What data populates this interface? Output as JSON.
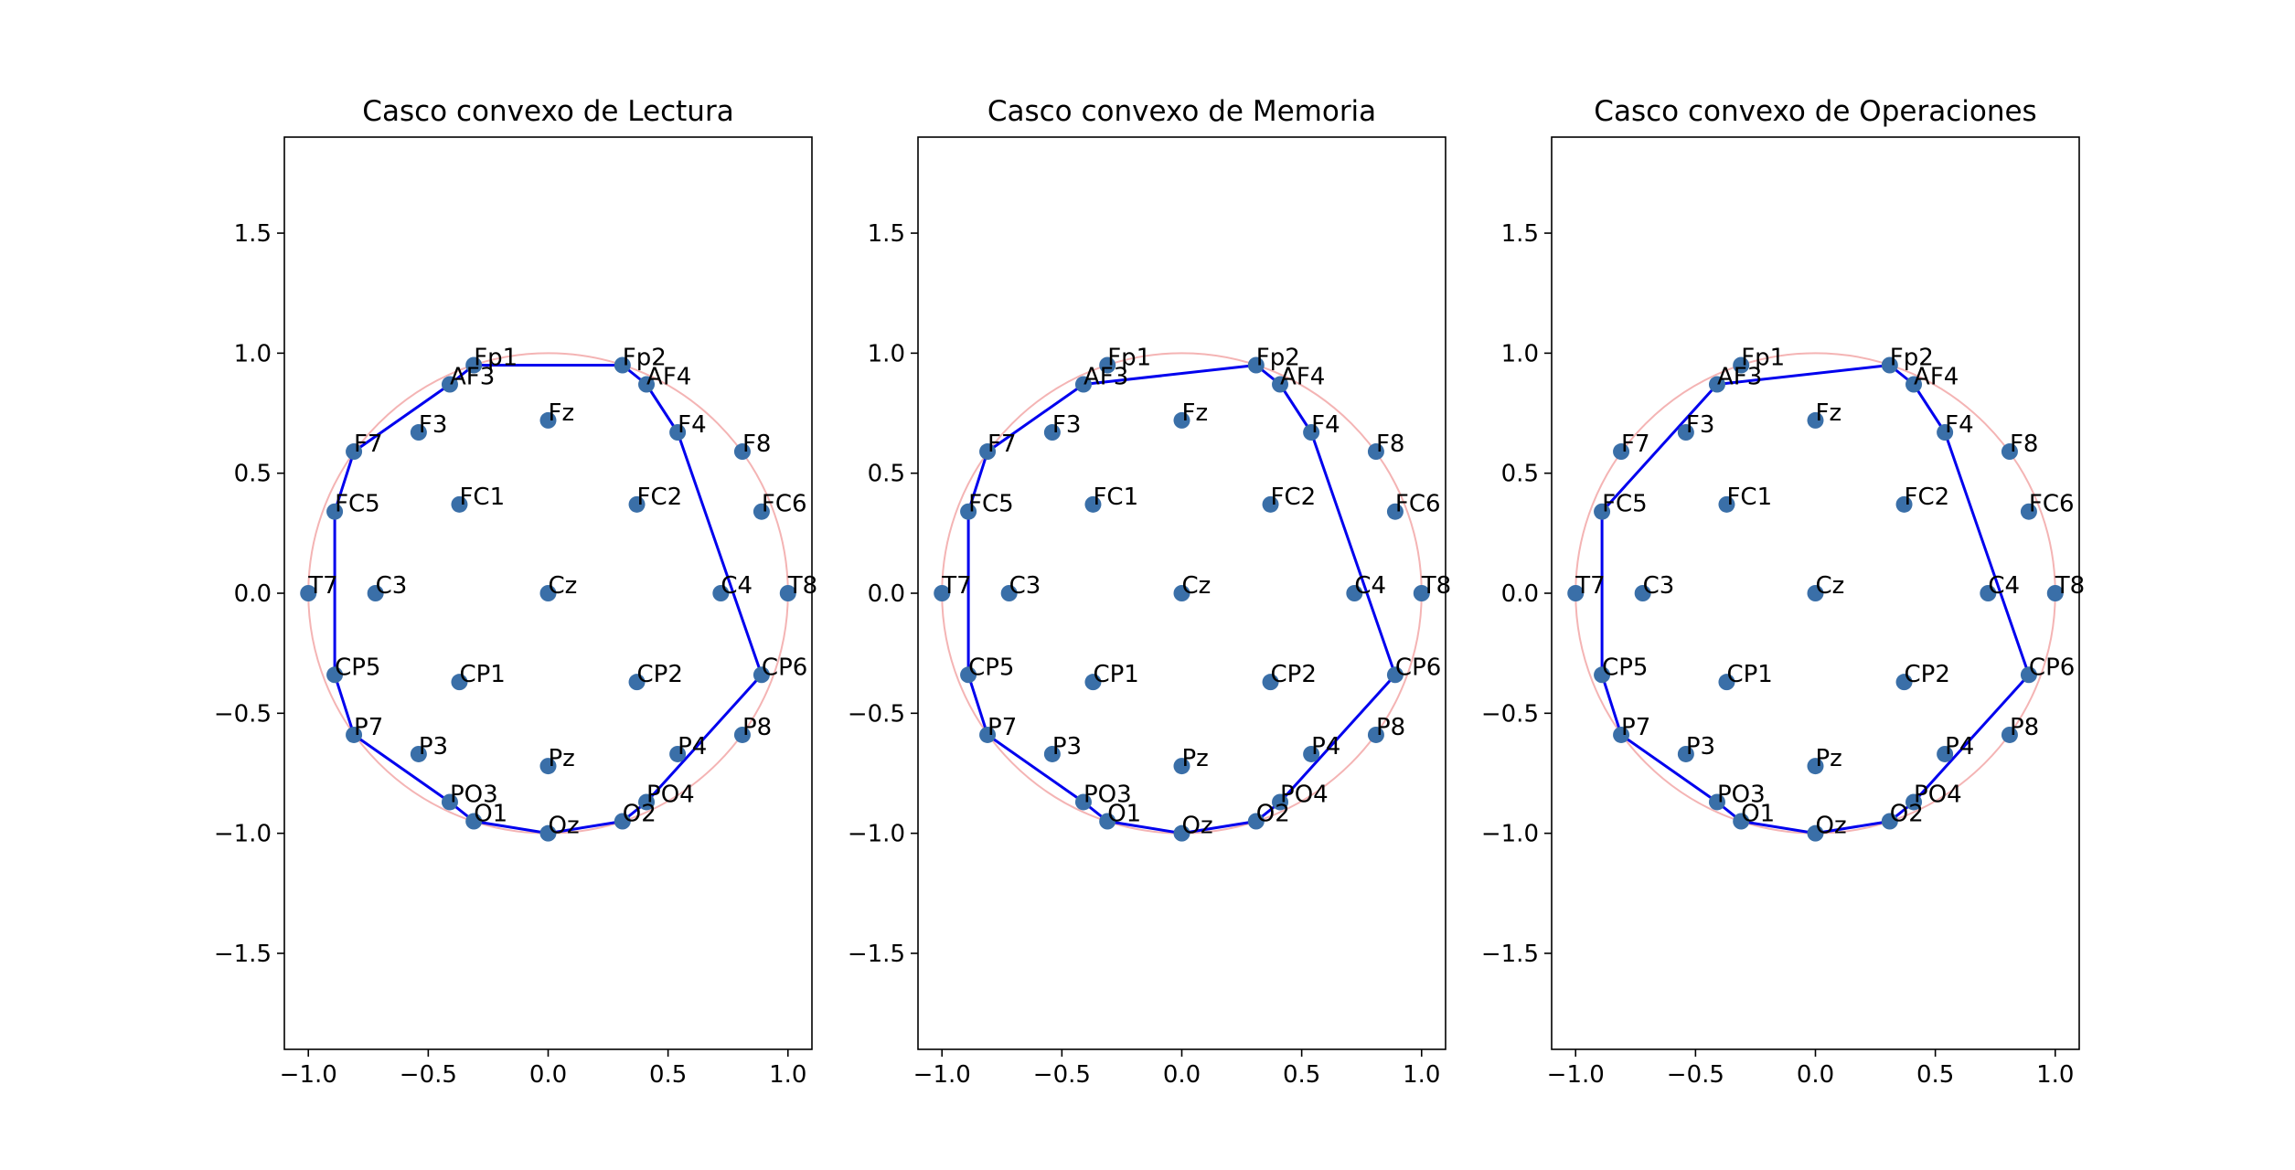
{
  "figure": {
    "background": "#ffffff"
  },
  "chart_data": [
    {
      "type": "scatter",
      "title": "Casco convexo de Lectura",
      "xlabel": "",
      "ylabel": "",
      "xlim": [
        -1.1,
        1.1
      ],
      "ylim": [
        -1.9,
        1.9
      ],
      "xticks": [
        -1.0,
        -0.5,
        0.0,
        0.5,
        1.0
      ],
      "yticks": [
        -1.5,
        -1.0,
        -0.5,
        0.0,
        0.5,
        1.0,
        1.5
      ],
      "xtick_labels": [
        "−1.0",
        "−0.5",
        "0.0",
        "0.5",
        "1.0"
      ],
      "ytick_labels": [
        "−1.5",
        "−1.0",
        "−0.5",
        "0.0",
        "0.5",
        "1.0",
        "1.5"
      ],
      "grid": false,
      "reference_circle": {
        "cx": 0,
        "cy": 0,
        "r": 1,
        "color": "#f4b4b4"
      },
      "point_color": "#3a6fa8",
      "hull_color": "#0000ee",
      "points": [
        {
          "label": "Fp1",
          "x": -0.31,
          "y": 0.95
        },
        {
          "label": "Fp2",
          "x": 0.31,
          "y": 0.95
        },
        {
          "label": "AF3",
          "x": -0.41,
          "y": 0.87
        },
        {
          "label": "AF4",
          "x": 0.41,
          "y": 0.87
        },
        {
          "label": "F7",
          "x": -0.81,
          "y": 0.59
        },
        {
          "label": "F3",
          "x": -0.54,
          "y": 0.67
        },
        {
          "label": "Fz",
          "x": 0.0,
          "y": 0.72
        },
        {
          "label": "F4",
          "x": 0.54,
          "y": 0.67
        },
        {
          "label": "F8",
          "x": 0.81,
          "y": 0.59
        },
        {
          "label": "FC5",
          "x": -0.89,
          "y": 0.34
        },
        {
          "label": "FC1",
          "x": -0.37,
          "y": 0.37
        },
        {
          "label": "FC2",
          "x": 0.37,
          "y": 0.37
        },
        {
          "label": "FC6",
          "x": 0.89,
          "y": 0.34
        },
        {
          "label": "T7",
          "x": -1.0,
          "y": 0.0
        },
        {
          "label": "C3",
          "x": -0.72,
          "y": 0.0
        },
        {
          "label": "Cz",
          "x": 0.0,
          "y": 0.0
        },
        {
          "label": "C4",
          "x": 0.72,
          "y": 0.0
        },
        {
          "label": "T8",
          "x": 1.0,
          "y": 0.0
        },
        {
          "label": "CP5",
          "x": -0.89,
          "y": -0.34
        },
        {
          "label": "CP1",
          "x": -0.37,
          "y": -0.37
        },
        {
          "label": "CP2",
          "x": 0.37,
          "y": -0.37
        },
        {
          "label": "CP6",
          "x": 0.89,
          "y": -0.34
        },
        {
          "label": "P7",
          "x": -0.81,
          "y": -0.59
        },
        {
          "label": "P3",
          "x": -0.54,
          "y": -0.67
        },
        {
          "label": "Pz",
          "x": 0.0,
          "y": -0.72
        },
        {
          "label": "P4",
          "x": 0.54,
          "y": -0.67
        },
        {
          "label": "P8",
          "x": 0.81,
          "y": -0.59
        },
        {
          "label": "PO3",
          "x": -0.41,
          "y": -0.87
        },
        {
          "label": "PO4",
          "x": 0.41,
          "y": -0.87
        },
        {
          "label": "O1",
          "x": -0.31,
          "y": -0.95
        },
        {
          "label": "Oz",
          "x": 0.0,
          "y": -1.0
        },
        {
          "label": "O2",
          "x": 0.31,
          "y": -0.95
        }
      ],
      "hull": [
        "Fp1",
        "Fp2",
        "AF4",
        "F4",
        "CP6",
        "PO4",
        "O2",
        "Oz",
        "O1",
        "PO3",
        "P7",
        "CP5",
        "FC5",
        "F7",
        "AF3",
        "Fp1"
      ]
    },
    {
      "type": "scatter",
      "title": "Casco convexo de Memoria",
      "xlabel": "",
      "ylabel": "",
      "xlim": [
        -1.1,
        1.1
      ],
      "ylim": [
        -1.9,
        1.9
      ],
      "xticks": [
        -1.0,
        -0.5,
        0.0,
        0.5,
        1.0
      ],
      "yticks": [
        -1.5,
        -1.0,
        -0.5,
        0.0,
        0.5,
        1.0,
        1.5
      ],
      "xtick_labels": [
        "−1.0",
        "−0.5",
        "0.0",
        "0.5",
        "1.0"
      ],
      "ytick_labels": [
        "−1.5",
        "−1.0",
        "−0.5",
        "0.0",
        "0.5",
        "1.0",
        "1.5"
      ],
      "grid": false,
      "reference_circle": {
        "cx": 0,
        "cy": 0,
        "r": 1,
        "color": "#f4b4b4"
      },
      "point_color": "#3a6fa8",
      "hull_color": "#0000ee",
      "points": [
        {
          "label": "Fp1",
          "x": -0.31,
          "y": 0.95
        },
        {
          "label": "Fp2",
          "x": 0.31,
          "y": 0.95
        },
        {
          "label": "AF3",
          "x": -0.41,
          "y": 0.87
        },
        {
          "label": "AF4",
          "x": 0.41,
          "y": 0.87
        },
        {
          "label": "F7",
          "x": -0.81,
          "y": 0.59
        },
        {
          "label": "F3",
          "x": -0.54,
          "y": 0.67
        },
        {
          "label": "Fz",
          "x": 0.0,
          "y": 0.72
        },
        {
          "label": "F4",
          "x": 0.54,
          "y": 0.67
        },
        {
          "label": "F8",
          "x": 0.81,
          "y": 0.59
        },
        {
          "label": "FC5",
          "x": -0.89,
          "y": 0.34
        },
        {
          "label": "FC1",
          "x": -0.37,
          "y": 0.37
        },
        {
          "label": "FC2",
          "x": 0.37,
          "y": 0.37
        },
        {
          "label": "FC6",
          "x": 0.89,
          "y": 0.34
        },
        {
          "label": "T7",
          "x": -1.0,
          "y": 0.0
        },
        {
          "label": "C3",
          "x": -0.72,
          "y": 0.0
        },
        {
          "label": "Cz",
          "x": 0.0,
          "y": 0.0
        },
        {
          "label": "C4",
          "x": 0.72,
          "y": 0.0
        },
        {
          "label": "T8",
          "x": 1.0,
          "y": 0.0
        },
        {
          "label": "CP5",
          "x": -0.89,
          "y": -0.34
        },
        {
          "label": "CP1",
          "x": -0.37,
          "y": -0.37
        },
        {
          "label": "CP2",
          "x": 0.37,
          "y": -0.37
        },
        {
          "label": "CP6",
          "x": 0.89,
          "y": -0.34
        },
        {
          "label": "P7",
          "x": -0.81,
          "y": -0.59
        },
        {
          "label": "P3",
          "x": -0.54,
          "y": -0.67
        },
        {
          "label": "Pz",
          "x": 0.0,
          "y": -0.72
        },
        {
          "label": "P4",
          "x": 0.54,
          "y": -0.67
        },
        {
          "label": "P8",
          "x": 0.81,
          "y": -0.59
        },
        {
          "label": "PO3",
          "x": -0.41,
          "y": -0.87
        },
        {
          "label": "PO4",
          "x": 0.41,
          "y": -0.87
        },
        {
          "label": "O1",
          "x": -0.31,
          "y": -0.95
        },
        {
          "label": "Oz",
          "x": 0.0,
          "y": -1.0
        },
        {
          "label": "O2",
          "x": 0.31,
          "y": -0.95
        }
      ],
      "hull": [
        "AF3",
        "Fp2",
        "AF4",
        "F4",
        "CP6",
        "PO4",
        "O2",
        "Oz",
        "O1",
        "PO3",
        "P7",
        "CP5",
        "FC5",
        "F7",
        "AF3"
      ]
    },
    {
      "type": "scatter",
      "title": "Casco convexo de Operaciones",
      "xlabel": "",
      "ylabel": "",
      "xlim": [
        -1.1,
        1.1
      ],
      "ylim": [
        -1.9,
        1.9
      ],
      "xticks": [
        -1.0,
        -0.5,
        0.0,
        0.5,
        1.0
      ],
      "yticks": [
        -1.5,
        -1.0,
        -0.5,
        0.0,
        0.5,
        1.0,
        1.5
      ],
      "xtick_labels": [
        "−1.0",
        "−0.5",
        "0.0",
        "0.5",
        "1.0"
      ],
      "ytick_labels": [
        "−1.5",
        "−1.0",
        "−0.5",
        "0.0",
        "0.5",
        "1.0",
        "1.5"
      ],
      "grid": false,
      "reference_circle": {
        "cx": 0,
        "cy": 0,
        "r": 1,
        "color": "#f4b4b4"
      },
      "point_color": "#3a6fa8",
      "hull_color": "#0000ee",
      "points": [
        {
          "label": "Fp1",
          "x": -0.31,
          "y": 0.95
        },
        {
          "label": "Fp2",
          "x": 0.31,
          "y": 0.95
        },
        {
          "label": "AF3",
          "x": -0.41,
          "y": 0.87
        },
        {
          "label": "AF4",
          "x": 0.41,
          "y": 0.87
        },
        {
          "label": "F7",
          "x": -0.81,
          "y": 0.59
        },
        {
          "label": "F3",
          "x": -0.54,
          "y": 0.67
        },
        {
          "label": "Fz",
          "x": 0.0,
          "y": 0.72
        },
        {
          "label": "F4",
          "x": 0.54,
          "y": 0.67
        },
        {
          "label": "F8",
          "x": 0.81,
          "y": 0.59
        },
        {
          "label": "FC5",
          "x": -0.89,
          "y": 0.34
        },
        {
          "label": "FC1",
          "x": -0.37,
          "y": 0.37
        },
        {
          "label": "FC2",
          "x": 0.37,
          "y": 0.37
        },
        {
          "label": "FC6",
          "x": 0.89,
          "y": 0.34
        },
        {
          "label": "T7",
          "x": -1.0,
          "y": 0.0
        },
        {
          "label": "C3",
          "x": -0.72,
          "y": 0.0
        },
        {
          "label": "Cz",
          "x": 0.0,
          "y": 0.0
        },
        {
          "label": "C4",
          "x": 0.72,
          "y": 0.0
        },
        {
          "label": "T8",
          "x": 1.0,
          "y": 0.0
        },
        {
          "label": "CP5",
          "x": -0.89,
          "y": -0.34
        },
        {
          "label": "CP1",
          "x": -0.37,
          "y": -0.37
        },
        {
          "label": "CP2",
          "x": 0.37,
          "y": -0.37
        },
        {
          "label": "CP6",
          "x": 0.89,
          "y": -0.34
        },
        {
          "label": "P7",
          "x": -0.81,
          "y": -0.59
        },
        {
          "label": "P3",
          "x": -0.54,
          "y": -0.67
        },
        {
          "label": "Pz",
          "x": 0.0,
          "y": -0.72
        },
        {
          "label": "P4",
          "x": 0.54,
          "y": -0.67
        },
        {
          "label": "P8",
          "x": 0.81,
          "y": -0.59
        },
        {
          "label": "PO3",
          "x": -0.41,
          "y": -0.87
        },
        {
          "label": "PO4",
          "x": 0.41,
          "y": -0.87
        },
        {
          "label": "O1",
          "x": -0.31,
          "y": -0.95
        },
        {
          "label": "Oz",
          "x": 0.0,
          "y": -1.0
        },
        {
          "label": "O2",
          "x": 0.31,
          "y": -0.95
        }
      ],
      "hull": [
        "AF3",
        "Fp2",
        "AF4",
        "F4",
        "CP6",
        "PO4",
        "O2",
        "Oz",
        "O1",
        "PO3",
        "P7",
        "CP5",
        "FC5",
        "AF3"
      ]
    }
  ]
}
